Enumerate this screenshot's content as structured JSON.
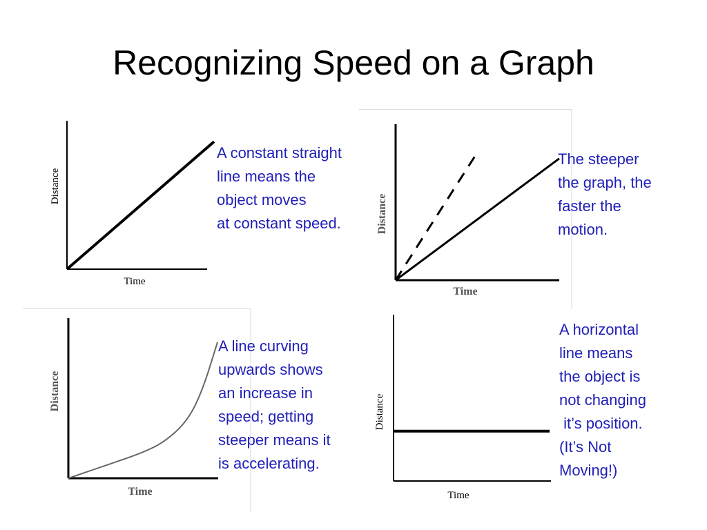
{
  "slide": {
    "title": "Recognizing Speed on a Graph"
  },
  "colors": {
    "caption": "#1f1fb8",
    "line": "#000000",
    "curve": "#666666"
  },
  "panels": [
    {
      "caption": [
        "A constant straight",
        "line means the",
        "object moves",
        "at constant speed."
      ]
    },
    {
      "caption": [
        "The steeper",
        "the graph, the",
        "faster the",
        "motion."
      ]
    },
    {
      "caption": [
        "A line curving",
        "upwards shows",
        "an increase in",
        "speed; getting",
        "steeper means it",
        "is accelerating."
      ]
    },
    {
      "caption": [
        "A horizontal",
        "line means",
        "the object is",
        "not changing",
        " it’s position.",
        "(It’s Not",
        "Moving!)"
      ]
    }
  ],
  "chart_data": [
    {
      "type": "line",
      "xlabel": "Time",
      "ylabel": "Distance",
      "series": [
        {
          "style": "solid",
          "points": [
            [
              0,
              0
            ],
            [
              1,
              0.84
            ]
          ]
        }
      ]
    },
    {
      "type": "line",
      "xlabel": "Time",
      "ylabel": "Distance",
      "series": [
        {
          "style": "dashed",
          "points": [
            [
              0,
              0
            ],
            [
              0.5,
              0.82
            ]
          ]
        },
        {
          "style": "solid",
          "points": [
            [
              0,
              0
            ],
            [
              1,
              0.78
            ]
          ]
        }
      ]
    },
    {
      "type": "line",
      "xlabel": "Time",
      "ylabel": "Distance",
      "series": [
        {
          "style": "curve",
          "points": [
            [
              0,
              0
            ],
            [
              0.25,
              0.08
            ],
            [
              0.5,
              0.16
            ],
            [
              0.65,
              0.23
            ],
            [
              0.8,
              0.36
            ],
            [
              0.9,
              0.55
            ],
            [
              1,
              0.85
            ]
          ]
        }
      ]
    },
    {
      "type": "line",
      "xlabel": "Time",
      "ylabel": "Distance",
      "series": [
        {
          "style": "solid",
          "points": [
            [
              0,
              0.3
            ],
            [
              1,
              0.3
            ]
          ]
        }
      ]
    }
  ]
}
